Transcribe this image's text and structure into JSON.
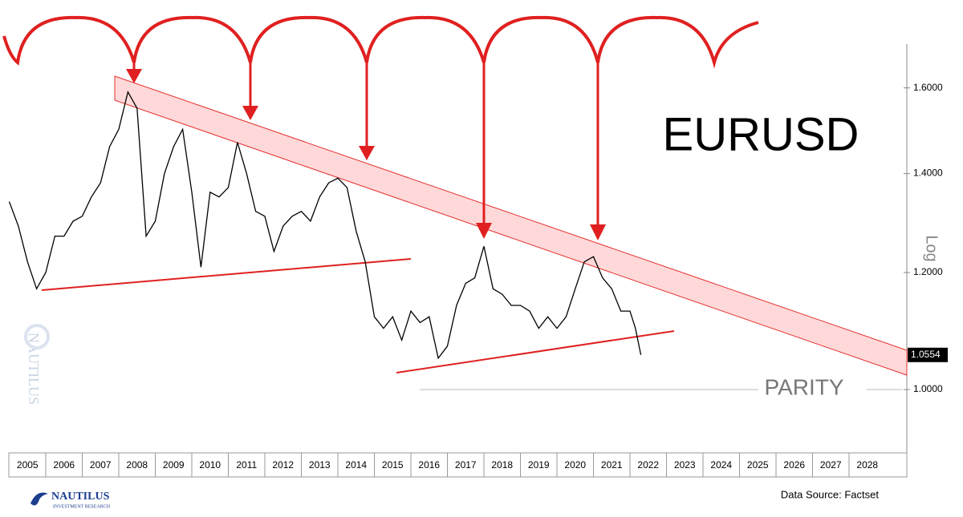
{
  "chart_data": {
    "type": "line",
    "title": "EURUSD",
    "y_axis_label": "Log",
    "log_scale": true,
    "categories": [
      "2005",
      "2006",
      "2007",
      "2008",
      "2009",
      "2010",
      "2011",
      "2012",
      "2013",
      "2014",
      "2015",
      "2016",
      "2017",
      "2018",
      "2019",
      "2020",
      "2021",
      "2022",
      "2023",
      "2024",
      "2025",
      "2026",
      "2027",
      "2028"
    ],
    "xlim": [
      2005,
      2029
    ],
    "ylim": [
      0.906,
      1.713
    ],
    "yticks": [
      {
        "value": 1.0,
        "label": "1.0000"
      },
      {
        "value": 1.2,
        "label": "1.2000"
      },
      {
        "value": 1.4,
        "label": "1.4000"
      },
      {
        "value": 1.6,
        "label": "1.6000"
      }
    ],
    "last_marker": {
      "value": 1.0554,
      "label": "1.0554"
    },
    "annotation": "PARITY",
    "series": [
      {
        "name": "EURUSD",
        "color": "#000000",
        "x": [
          2005.0,
          2005.25,
          2005.5,
          2005.75,
          2006.0,
          2006.25,
          2006.5,
          2006.75,
          2007.0,
          2007.25,
          2007.5,
          2007.75,
          2008.0,
          2008.25,
          2008.5,
          2008.75,
          2009.0,
          2009.25,
          2009.5,
          2009.75,
          2010.0,
          2010.25,
          2010.5,
          2010.75,
          2011.0,
          2011.25,
          2011.5,
          2011.75,
          2012.0,
          2012.25,
          2012.5,
          2012.75,
          2013.0,
          2013.25,
          2013.5,
          2013.75,
          2014.0,
          2014.25,
          2014.5,
          2014.75,
          2015.0,
          2015.25,
          2015.5,
          2015.75,
          2016.0,
          2016.25,
          2016.5,
          2016.75,
          2017.0,
          2017.25,
          2017.5,
          2017.75,
          2018.0,
          2018.25,
          2018.5,
          2018.75,
          2019.0,
          2019.25,
          2019.5,
          2019.75,
          2020.0,
          2020.25,
          2020.5,
          2020.75,
          2021.0,
          2021.25,
          2021.5,
          2021.75,
          2022.0,
          2022.15,
          2022.3
        ],
        "values": [
          1.34,
          1.29,
          1.22,
          1.17,
          1.2,
          1.27,
          1.27,
          1.3,
          1.31,
          1.35,
          1.38,
          1.46,
          1.5,
          1.59,
          1.55,
          1.27,
          1.3,
          1.4,
          1.46,
          1.5,
          1.36,
          1.21,
          1.36,
          1.35,
          1.37,
          1.47,
          1.4,
          1.32,
          1.31,
          1.24,
          1.29,
          1.31,
          1.32,
          1.3,
          1.35,
          1.38,
          1.39,
          1.37,
          1.28,
          1.22,
          1.12,
          1.1,
          1.12,
          1.08,
          1.13,
          1.11,
          1.12,
          1.05,
          1.07,
          1.14,
          1.18,
          1.19,
          1.25,
          1.17,
          1.16,
          1.14,
          1.14,
          1.13,
          1.1,
          1.12,
          1.1,
          1.12,
          1.17,
          1.22,
          1.23,
          1.19,
          1.17,
          1.13,
          1.13,
          1.1,
          1.0554
        ]
      }
    ]
  },
  "source": "Data Source: Factset",
  "logo": {
    "name": "NAUTILUS",
    "tagline": "INVESTMENT RESEARCH"
  }
}
